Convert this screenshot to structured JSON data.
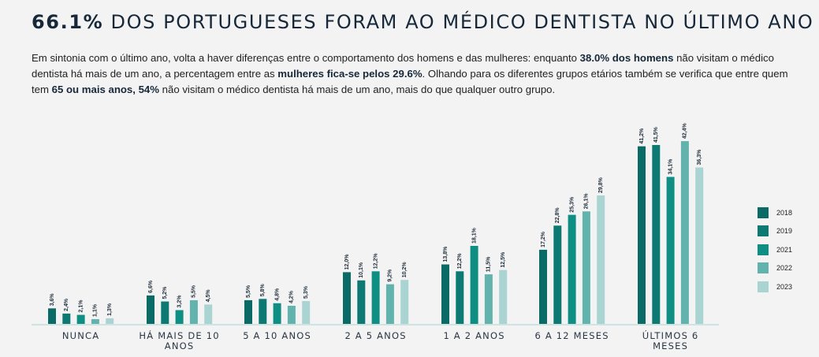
{
  "header": {
    "title_highlight": "66.1%",
    "title_rest": "DOS PORTUGUESES FORAM AO MÉDICO DENTISTA NO ÚLTIMO ANO"
  },
  "intro": {
    "p1": "Em sintonia com o último ano, volta a haver diferenças entre o comportamento dos homens e das mulheres: enquanto ",
    "b1": "38.0% dos homens",
    "p2": " não visitam o médico dentista há mais de um ano, a percentagem entre as ",
    "b2": "mulheres fica-se pelos 29.6%",
    "p3": ". Olhando para os diferentes grupos etários também se verifica que entre quem tem ",
    "b3": "65 ou mais anos, 54%",
    "p4": " não visitam o médico dentista há mais de um ano, mais do que qualquer outro grupo."
  },
  "chart_data": {
    "type": "bar",
    "title": "",
    "xlabel": "",
    "ylabel": "",
    "ylim": [
      0,
      45
    ],
    "categories": [
      "NUNCA",
      "HÁ MAIS DE 10 ANOS",
      "5 A 10 ANOS",
      "2 A 5 ANOS",
      "1 A 2 ANOS",
      "6 A 12 MESES",
      "ÚLTIMOS 6 MESES"
    ],
    "series": [
      {
        "name": "2018",
        "color": "#0a6b66",
        "values": [
          3.6,
          6.6,
          5.5,
          12.0,
          13.8,
          17.2,
          41.2
        ]
      },
      {
        "name": "2019",
        "color": "#0c7a73",
        "values": [
          2.4,
          5.2,
          5.8,
          10.1,
          12.2,
          22.8,
          41.5
        ]
      },
      {
        "name": "2021",
        "color": "#0f8f84",
        "values": [
          2.1,
          3.2,
          4.8,
          12.2,
          18.1,
          25.3,
          34.1
        ]
      },
      {
        "name": "2022",
        "color": "#62b3ad",
        "values": [
          1.1,
          5.5,
          4.2,
          9.2,
          11.5,
          26.1,
          42.4
        ]
      },
      {
        "name": "2023",
        "color": "#a9d4d1",
        "values": [
          1.3,
          4.5,
          5.3,
          10.2,
          12.5,
          29.8,
          36.3
        ]
      }
    ],
    "data_labels": [
      [
        "3,6%",
        "6,6%",
        "5,5%",
        "12,0%",
        "13,8%",
        "17,2%",
        "41,2%"
      ],
      [
        "2,4%",
        "5,2%",
        "5,8%",
        "10,1%",
        "12,2%",
        "22,8%",
        "41,5%"
      ],
      [
        "2,1%",
        "3,2%",
        "4,8%",
        "12,2%",
        "18,1%",
        "25,3%",
        "34,1%"
      ],
      [
        "1,1%",
        "5,5%",
        "4,2%",
        "9,2%",
        "11,5%",
        "26,1%",
        "42,4%"
      ],
      [
        "1,3%",
        "4,5%",
        "5,3%",
        "10,2%",
        "12,5%",
        "29,8%",
        "36,3%"
      ]
    ],
    "category_labels": [
      [
        "NUNCA"
      ],
      [
        "HÁ MAIS DE 10",
        "ANOS"
      ],
      [
        "5 A 10 ANOS"
      ],
      [
        "2 A 5 ANOS"
      ],
      [
        "1 A 2 ANOS"
      ],
      [
        "6 A 12 MESES"
      ],
      [
        "ÚLTIMOS 6 MESES"
      ]
    ],
    "legend": [
      "2018",
      "2019",
      "2021",
      "2022",
      "2023"
    ],
    "baseline_color": "#cfe3e3"
  }
}
